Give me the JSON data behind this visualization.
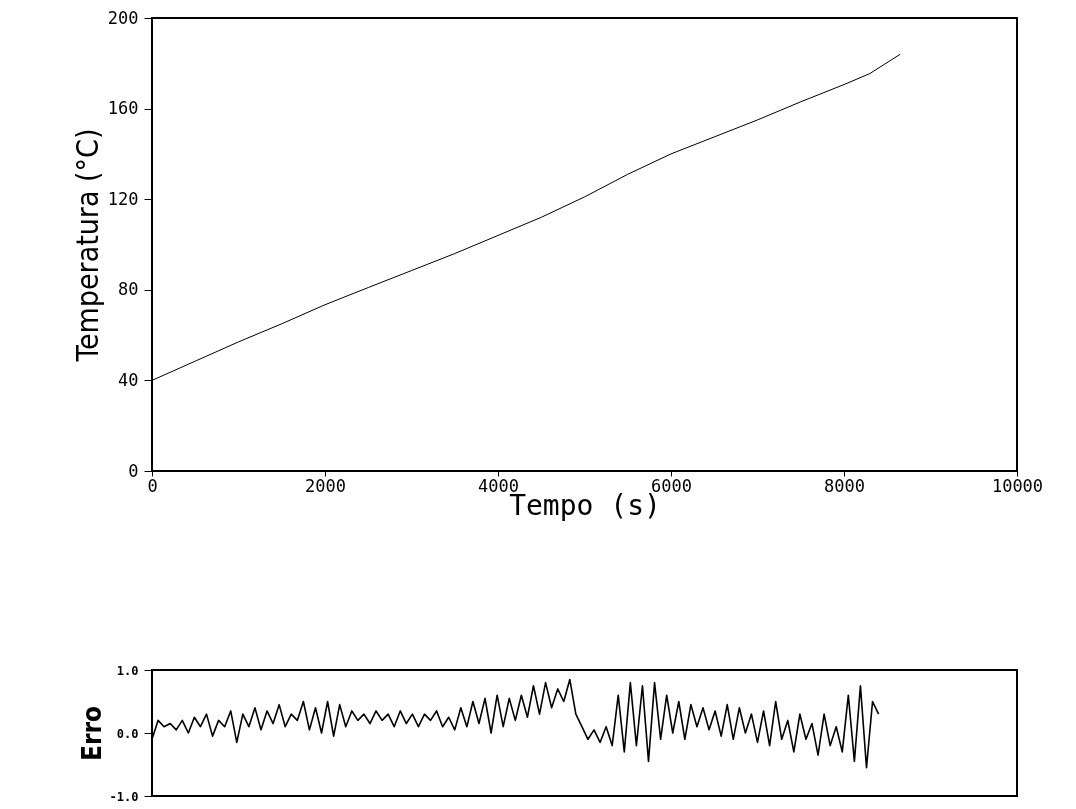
{
  "chart_data": [
    {
      "type": "line",
      "xlabel": "Tempo  (s)",
      "ylabel": "Temperatura (°C)",
      "x": [
        0,
        500,
        1000,
        1500,
        2000,
        2500,
        3000,
        3500,
        4000,
        4500,
        5000,
        5500,
        6000,
        6500,
        7000,
        7500,
        8000,
        8300,
        8650
      ],
      "series": [
        {
          "color": "#000000",
          "values": [
            40,
            48.5,
            57,
            65,
            73.4,
            81,
            88.5,
            96,
            104,
            112,
            121,
            131,
            140,
            147.5,
            155,
            163,
            170.6,
            175.5,
            184
          ]
        }
      ],
      "xlim": [
        0,
        10000
      ],
      "ylim": [
        0,
        200
      ],
      "xticks": [
        0,
        2000,
        4000,
        6000,
        8000,
        10000
      ],
      "yticks": [
        0,
        40,
        80,
        120,
        160,
        200
      ],
      "grid": false
    },
    {
      "type": "line",
      "ylabel": "Erro",
      "x": [
        0,
        70,
        140,
        210,
        280,
        350,
        420,
        490,
        560,
        630,
        700,
        770,
        840,
        910,
        980,
        1050,
        1120,
        1190,
        1260,
        1330,
        1400,
        1470,
        1540,
        1610,
        1680,
        1750,
        1820,
        1890,
        1960,
        2030,
        2100,
        2170,
        2240,
        2310,
        2380,
        2450,
        2520,
        2590,
        2660,
        2730,
        2800,
        2870,
        2940,
        3010,
        3080,
        3150,
        3220,
        3290,
        3360,
        3430,
        3500,
        3570,
        3640,
        3710,
        3780,
        3850,
        3920,
        3990,
        4060,
        4130,
        4200,
        4270,
        4340,
        4410,
        4480,
        4550,
        4620,
        4690,
        4760,
        4830,
        4900,
        4970,
        5040,
        5110,
        5180,
        5250,
        5320,
        5390,
        5460,
        5530,
        5600,
        5670,
        5740,
        5810,
        5880,
        5950,
        6020,
        6090,
        6160,
        6230,
        6300,
        6370,
        6440,
        6510,
        6580,
        6650,
        6720,
        6790,
        6860,
        6930,
        7000,
        7070,
        7140,
        7210,
        7280,
        7350,
        7420,
        7490,
        7560,
        7630,
        7700,
        7770,
        7840,
        7910,
        7980,
        8050,
        8120,
        8190,
        8260,
        8330,
        8400
      ],
      "series": [
        {
          "color": "#000000",
          "values": [
            -0.1,
            0.2,
            0.1,
            0.15,
            0.05,
            0.2,
            0.0,
            0.25,
            0.1,
            0.3,
            -0.05,
            0.2,
            0.1,
            0.35,
            -0.15,
            0.3,
            0.1,
            0.4,
            0.05,
            0.35,
            0.15,
            0.45,
            0.1,
            0.3,
            0.2,
            0.5,
            0.05,
            0.4,
            0.0,
            0.5,
            -0.05,
            0.45,
            0.1,
            0.35,
            0.2,
            0.3,
            0.15,
            0.35,
            0.2,
            0.3,
            0.1,
            0.35,
            0.15,
            0.3,
            0.1,
            0.3,
            0.2,
            0.35,
            0.1,
            0.25,
            0.05,
            0.4,
            0.1,
            0.5,
            0.15,
            0.55,
            0.0,
            0.6,
            0.1,
            0.55,
            0.2,
            0.6,
            0.25,
            0.75,
            0.3,
            0.8,
            0.4,
            0.7,
            0.5,
            0.85,
            0.3,
            0.1,
            -0.1,
            0.05,
            -0.15,
            0.1,
            -0.2,
            0.6,
            -0.3,
            0.8,
            -0.2,
            0.75,
            -0.45,
            0.8,
            -0.1,
            0.6,
            0.0,
            0.5,
            -0.1,
            0.45,
            0.1,
            0.4,
            0.05,
            0.35,
            -0.05,
            0.45,
            -0.1,
            0.4,
            0.0,
            0.3,
            -0.15,
            0.35,
            -0.2,
            0.5,
            -0.1,
            0.2,
            -0.3,
            0.3,
            -0.1,
            0.15,
            -0.35,
            0.3,
            -0.2,
            0.1,
            -0.3,
            0.6,
            -0.45,
            0.75,
            -0.55,
            0.5,
            0.3
          ]
        }
      ],
      "xlim": [
        0,
        10000
      ],
      "ylim": [
        -1,
        1
      ],
      "yticks": [
        {
          "value": -1,
          "label": "-1.0"
        },
        {
          "value": 0,
          "label": "0.0"
        },
        {
          "value": 1,
          "label": "1.0"
        }
      ],
      "tick_labels": "y",
      "grid": false
    }
  ]
}
